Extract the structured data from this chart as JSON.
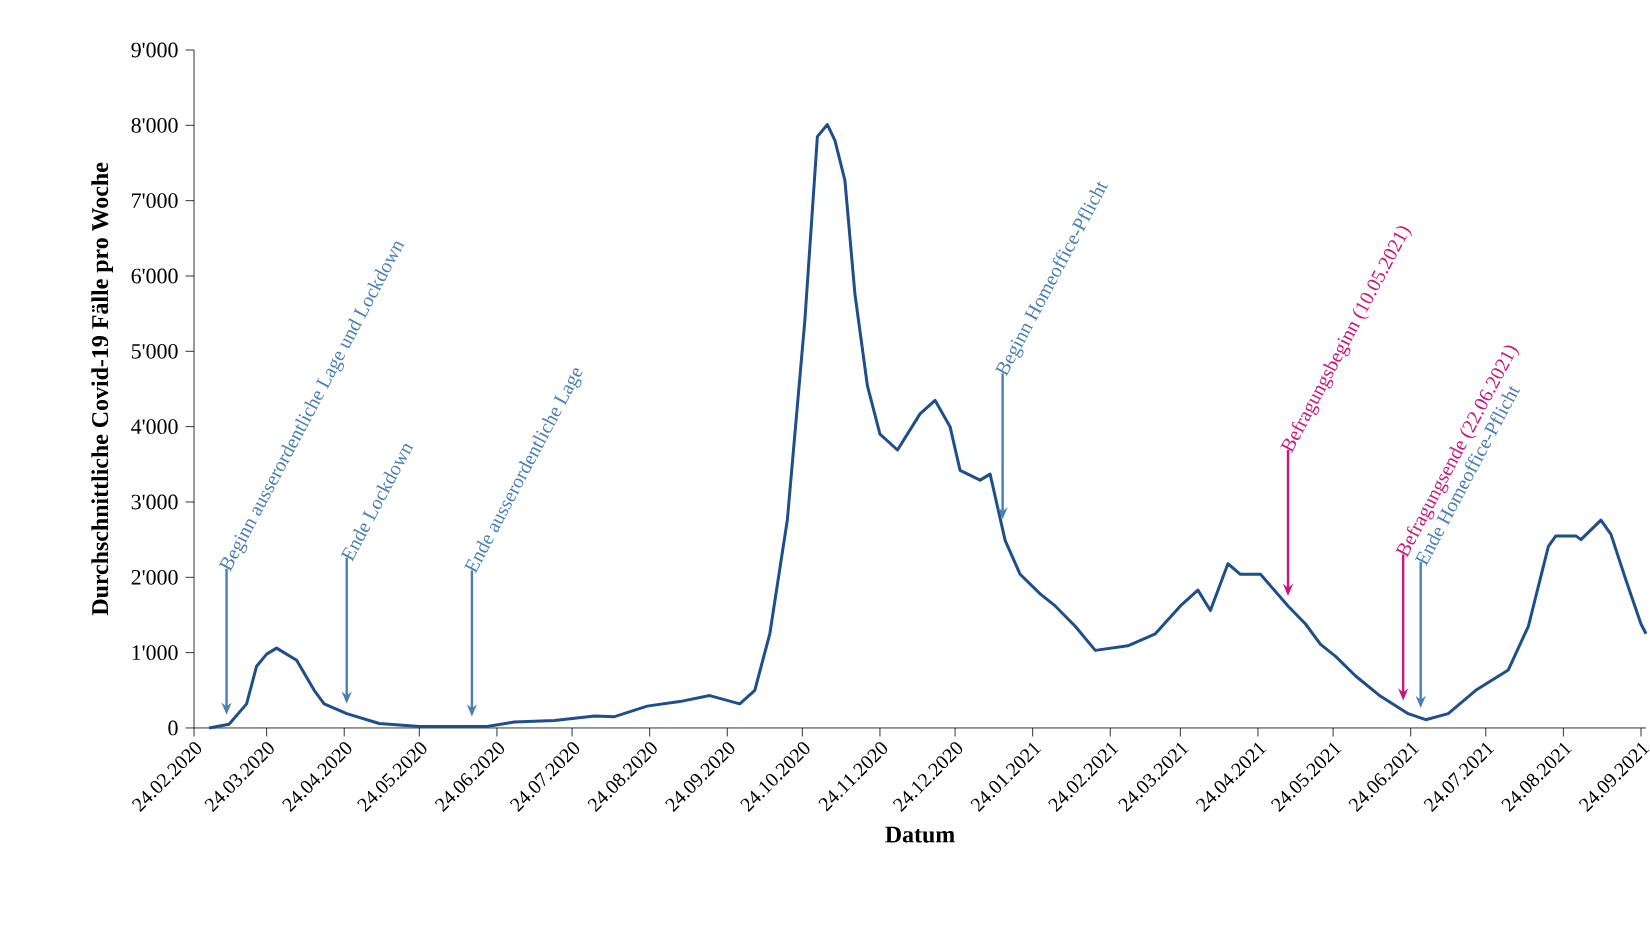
{
  "chart_data": {
    "type": "line",
    "xlabel": "Datum",
    "ylabel": "Durchschnittliche Covid-19 Fälle pro Woche",
    "x": [
      "2020-03-01",
      "2020-03-09",
      "2020-03-16",
      "2020-03-20",
      "2020-03-24",
      "2020-03-28",
      "2020-04-05",
      "2020-04-12",
      "2020-04-16",
      "2020-04-25",
      "2020-05-08",
      "2020-05-24",
      "2020-06-20",
      "2020-07-01",
      "2020-07-17",
      "2020-08-02",
      "2020-08-10",
      "2020-08-23",
      "2020-09-05",
      "2020-09-17",
      "2020-09-29",
      "2020-10-05",
      "2020-10-11",
      "2020-10-18",
      "2020-10-25",
      "2020-10-30",
      "2020-11-03",
      "2020-11-06",
      "2020-11-10",
      "2020-11-14",
      "2020-11-19",
      "2020-11-24",
      "2020-12-01",
      "2020-12-10",
      "2020-12-16",
      "2020-12-22",
      "2020-12-26",
      "2021-01-03",
      "2021-01-07",
      "2021-01-13",
      "2021-01-19",
      "2021-01-27",
      "2021-02-02",
      "2021-02-10",
      "2021-02-18",
      "2021-03-03",
      "2021-03-14",
      "2021-03-24",
      "2021-03-31",
      "2021-04-05",
      "2021-04-12",
      "2021-04-17",
      "2021-04-25",
      "2021-05-06",
      "2021-05-13",
      "2021-05-19",
      "2021-05-25",
      "2021-06-02",
      "2021-06-12",
      "2021-06-23",
      "2021-06-30",
      "2021-07-09",
      "2021-07-20",
      "2021-08-02",
      "2021-08-10",
      "2021-08-18",
      "2021-08-21",
      "2021-08-29",
      "2021-08-31",
      "2021-09-08",
      "2021-09-12",
      "2021-09-18",
      "2021-09-24",
      "2021-09-26"
    ],
    "series": [
      {
        "color": "#1f4e8c",
        "values": [
          0,
          50,
          320,
          820,
          980,
          1060,
          900,
          500,
          320,
          190,
          60,
          20,
          20,
          80,
          100,
          160,
          150,
          290,
          350,
          430,
          320,
          500,
          1250,
          2760,
          5410,
          7850,
          8010,
          7800,
          7270,
          5760,
          4540,
          3900,
          3690,
          4170,
          4350,
          4000,
          3420,
          3290,
          3370,
          2490,
          2040,
          1780,
          1620,
          1350,
          1030,
          1090,
          1250,
          1620,
          1830,
          1560,
          2180,
          2040,
          2040,
          1620,
          1380,
          1110,
          950,
          690,
          420,
          190,
          110,
          190,
          500,
          770,
          1350,
          2410,
          2550,
          2550,
          2500,
          2760,
          2570,
          1960,
          1380,
          1250
        ]
      }
    ],
    "xlim": [
      "2020-02-24",
      "2021-09-26"
    ],
    "xticks": [
      {
        "value": "2020-02-24",
        "label": "24.02.2020"
      },
      {
        "value": "2020-03-24",
        "label": "24.03.2020"
      },
      {
        "value": "2020-04-24",
        "label": "24.04.2020"
      },
      {
        "value": "2020-05-24",
        "label": "24.05.2020"
      },
      {
        "value": "2020-06-24",
        "label": "24.06.2020"
      },
      {
        "value": "2020-07-24",
        "label": "24.07.2020"
      },
      {
        "value": "2020-08-24",
        "label": "24.08.2020"
      },
      {
        "value": "2020-09-24",
        "label": "24.09.2020"
      },
      {
        "value": "2020-10-24",
        "label": "24.10.2020"
      },
      {
        "value": "2020-11-24",
        "label": "24.11.2020"
      },
      {
        "value": "2020-12-24",
        "label": "24.12.2020"
      },
      {
        "value": "2021-01-24",
        "label": "24.01.2021"
      },
      {
        "value": "2021-02-24",
        "label": "24.02.2021"
      },
      {
        "value": "2021-03-24",
        "label": "24.03.2021"
      },
      {
        "value": "2021-04-24",
        "label": "24.04.2021"
      },
      {
        "value": "2021-05-24",
        "label": "24.05.2021"
      },
      {
        "value": "2021-06-24",
        "label": "24.06.2021"
      },
      {
        "value": "2021-07-24",
        "label": "24.07.2021"
      },
      {
        "value": "2021-08-24",
        "label": "24.08.2021"
      },
      {
        "value": "2021-09-24",
        "label": "24.09.2021"
      }
    ],
    "ylim": [
      0,
      9000
    ],
    "yticks": [
      0,
      {
        "value": 1000,
        "label": "1'000"
      },
      {
        "value": 2000,
        "label": "2'000"
      },
      {
        "value": 3000,
        "label": "3'000"
      },
      {
        "value": 4000,
        "label": "4'000"
      },
      {
        "value": 5000,
        "label": "5'000"
      },
      {
        "value": 6000,
        "label": "6'000"
      },
      {
        "value": 7000,
        "label": "7'000"
      },
      {
        "value": 8000,
        "label": "8'000"
      },
      {
        "value": 9000,
        "label": "9'000"
      }
    ],
    "ref_lines": [
      {
        "axis": "x",
        "value": "2020-03-08",
        "label": "Beginn ausserordentliche Lage und Lockdown",
        "color": "#4a7fb3"
      },
      {
        "axis": "x",
        "value": "2020-04-25",
        "label": "Ende Lockdown",
        "color": "#4a7fb3"
      },
      {
        "axis": "x",
        "value": "2020-06-14",
        "label": "Ende ausserordentliche Lage",
        "color": "#4a7fb3"
      },
      {
        "axis": "x",
        "value": "2021-01-12",
        "label": "Beginn Homeoffice-Pflicht",
        "color": "#4a7fb3"
      },
      {
        "axis": "x",
        "value": "2021-05-06",
        "label": "Befragungsbeginn (10.05.2021)",
        "color": "#c8187f"
      },
      {
        "axis": "x",
        "value": "2021-06-21",
        "label": "Befragungsende (22.06.2021)",
        "color": "#c8187f"
      },
      {
        "axis": "x",
        "value": "2021-06-28",
        "label": "Ende Homeoffice-Pflicht",
        "color": "#4a7fb3"
      }
    ]
  }
}
